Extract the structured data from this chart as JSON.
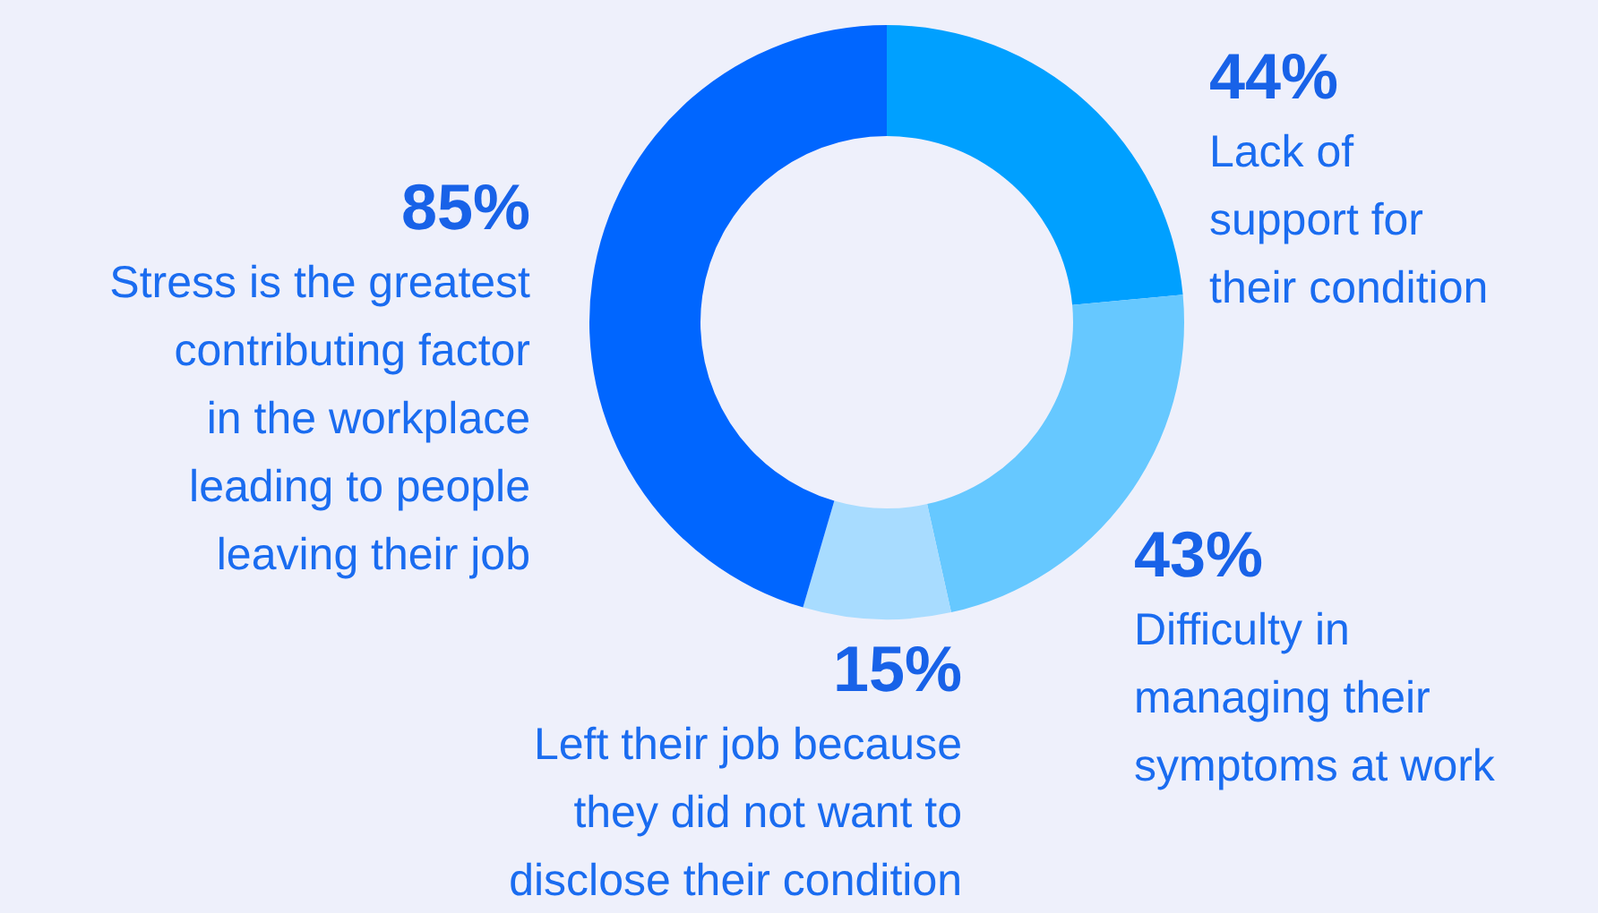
{
  "chart_data": {
    "type": "donut",
    "categories": [
      "Lack of\nsupport for\ntheir condition",
      "Difficulty in\nmanaging their\nsymptoms at work",
      "Left their job because\nthey did not want to\ndisclose their condition",
      "Stress is the greatest\ncontributing factor\nin the workplace\nleading to people\nleaving their job"
    ],
    "values": [
      44,
      43,
      15,
      85
    ],
    "value_labels": [
      "44%",
      "43%",
      "15%",
      "85%"
    ],
    "colors": [
      "#00a0ff",
      "#66c8ff",
      "#a8dcff",
      "#0066ff"
    ]
  }
}
